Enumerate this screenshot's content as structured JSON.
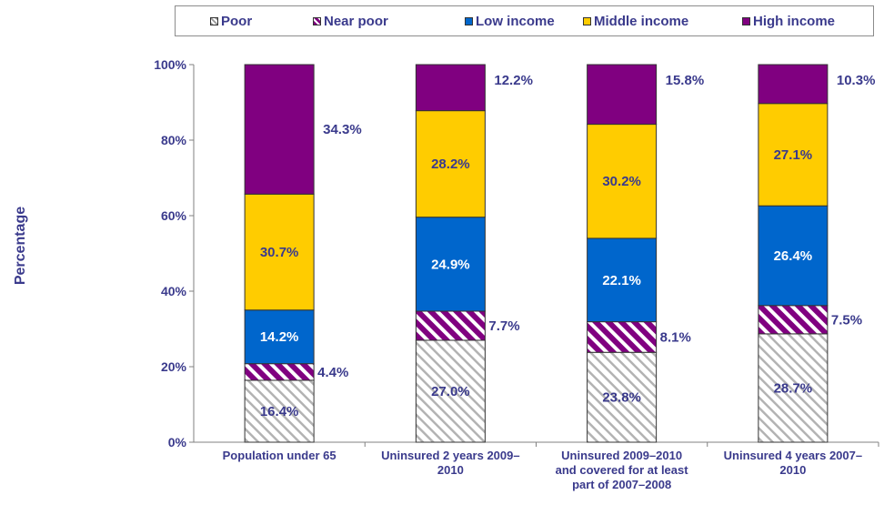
{
  "chart_data": {
    "type": "bar",
    "stacked": true,
    "ylabel": "Percentage",
    "ylim": [
      0,
      100
    ],
    "yticks": [
      "0%",
      "20%",
      "40%",
      "60%",
      "80%",
      "100%"
    ],
    "categories": [
      [
        "Population under 65"
      ],
      [
        "Uninsured 2 years 2009–",
        "2010"
      ],
      [
        "Uninsured 2009–2010",
        "and covered for at least",
        "part of 2007–2008"
      ],
      [
        "Uninsured 4 years 2007–",
        "2010"
      ]
    ],
    "series": [
      {
        "name": "Poor",
        "color": "#ffffff",
        "pattern": "gray-diagonal-hatch",
        "values": [
          16.4,
          27.0,
          23.8,
          28.7
        ],
        "labels": [
          "16.4%",
          "27.0%",
          "23.8%",
          "28.7%"
        ]
      },
      {
        "name": "Near poor",
        "color": "#800080",
        "pattern": "purple-diagonal-stripes",
        "values": [
          4.4,
          7.7,
          8.1,
          7.5
        ],
        "labels": [
          "4.4%",
          "7.7%",
          "8.1%",
          "7.5%"
        ]
      },
      {
        "name": "Low income",
        "color": "#0066cc",
        "values": [
          14.2,
          24.9,
          22.1,
          26.4
        ],
        "labels": [
          "14.2%",
          "24.9%",
          "22.1%",
          "26.4%"
        ]
      },
      {
        "name": "Middle income",
        "color": "#ffcc00",
        "values": [
          30.7,
          28.2,
          30.2,
          27.1
        ],
        "labels": [
          "30.7%",
          "28.2%",
          "30.2%",
          "27.1%"
        ]
      },
      {
        "name": "High income",
        "color": "#800080",
        "values": [
          34.3,
          12.2,
          15.8,
          10.3
        ],
        "labels": [
          "34.3%",
          "12.2%",
          "15.8%",
          "10.3%"
        ]
      }
    ],
    "label_color": "#3a3a8c",
    "grid": false,
    "legend_position": "top"
  }
}
